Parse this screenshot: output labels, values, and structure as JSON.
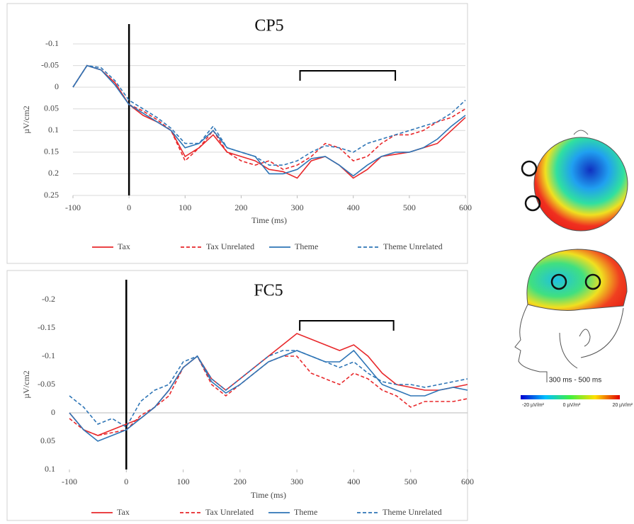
{
  "chart_data": [
    {
      "type": "line",
      "title": "CP5",
      "x_label": "Time (ms)",
      "y_label": "µV/cm2",
      "y_inverted": true,
      "grid": true,
      "legend": "bottom",
      "xlim": [
        -100,
        600
      ],
      "xticks": [
        -100,
        0,
        100,
        200,
        300,
        400,
        500,
        600
      ],
      "ylim": [
        -0.1,
        0.25
      ],
      "yticks": [
        -0.1,
        -0.05,
        0,
        0.05,
        0.1,
        0.15,
        0.2,
        0.25
      ],
      "onset": 0,
      "bracket": [
        305,
        475
      ],
      "x": [
        -100,
        -75,
        -50,
        -25,
        0,
        25,
        50,
        75,
        100,
        125,
        150,
        175,
        200,
        225,
        250,
        275,
        300,
        325,
        350,
        375,
        400,
        425,
        450,
        475,
        500,
        525,
        550,
        575,
        600
      ],
      "series": [
        {
          "name": "Tax",
          "color": "#e8282b",
          "dashed": false,
          "values": [
            0.0,
            -0.05,
            -0.04,
            -0.01,
            0.04,
            0.065,
            0.08,
            0.1,
            0.16,
            0.14,
            0.11,
            0.15,
            0.16,
            0.17,
            0.19,
            0.195,
            0.21,
            0.17,
            0.16,
            0.18,
            0.21,
            0.19,
            0.16,
            0.155,
            0.15,
            0.14,
            0.13,
            0.1,
            0.07
          ]
        },
        {
          "name": "Tax Unrelated",
          "color": "#e8282b",
          "dashed": true,
          "values": [
            0.0,
            -0.05,
            -0.04,
            -0.01,
            0.04,
            0.055,
            0.075,
            0.1,
            0.17,
            0.14,
            0.1,
            0.15,
            0.17,
            0.18,
            0.17,
            0.19,
            0.18,
            0.16,
            0.13,
            0.14,
            0.17,
            0.16,
            0.13,
            0.11,
            0.11,
            0.1,
            0.08,
            0.07,
            0.05
          ]
        },
        {
          "name": "Theme",
          "color": "#2e75b6",
          "dashed": false,
          "values": [
            0.0,
            -0.05,
            -0.04,
            -0.005,
            0.04,
            0.06,
            0.08,
            0.1,
            0.14,
            0.13,
            0.1,
            0.14,
            0.15,
            0.16,
            0.2,
            0.2,
            0.19,
            0.165,
            0.16,
            0.18,
            0.205,
            0.18,
            0.16,
            0.15,
            0.15,
            0.14,
            0.12,
            0.09,
            0.065
          ]
        },
        {
          "name": "Theme Unrelated",
          "color": "#2e75b6",
          "dashed": true,
          "values": [
            0.0,
            -0.05,
            -0.045,
            -0.015,
            0.03,
            0.05,
            0.07,
            0.095,
            0.13,
            0.13,
            0.09,
            0.14,
            0.15,
            0.16,
            0.18,
            0.18,
            0.17,
            0.15,
            0.135,
            0.14,
            0.15,
            0.13,
            0.12,
            0.11,
            0.1,
            0.09,
            0.08,
            0.06,
            0.03
          ]
        }
      ]
    },
    {
      "type": "line",
      "title": "FC5",
      "x_label": "Time (ms)",
      "y_label": "µV/cm2",
      "y_inverted": true,
      "grid": false,
      "legend": "bottom",
      "xlim": [
        -100,
        600
      ],
      "xticks": [
        -100,
        0,
        100,
        200,
        300,
        400,
        500,
        600
      ],
      "ylim": [
        -0.2,
        0.1
      ],
      "yticks": [
        -0.2,
        -0.15,
        -0.1,
        -0.05,
        0,
        0.05,
        0.1
      ],
      "onset": 0,
      "bracket": [
        305,
        470
      ],
      "x": [
        -100,
        -75,
        -50,
        -25,
        0,
        25,
        50,
        75,
        100,
        125,
        150,
        175,
        200,
        225,
        250,
        275,
        300,
        325,
        350,
        375,
        400,
        425,
        450,
        475,
        500,
        525,
        550,
        575,
        600
      ],
      "series": [
        {
          "name": "Tax",
          "color": "#e8282b",
          "dashed": false,
          "values": [
            0.0,
            0.03,
            0.04,
            0.03,
            0.02,
            0.01,
            -0.01,
            -0.04,
            -0.08,
            -0.1,
            -0.06,
            -0.04,
            -0.06,
            -0.08,
            -0.1,
            -0.12,
            -0.14,
            -0.13,
            -0.12,
            -0.11,
            -0.12,
            -0.1,
            -0.07,
            -0.05,
            -0.045,
            -0.04,
            -0.04,
            -0.045,
            -0.05
          ]
        },
        {
          "name": "Tax Unrelated",
          "color": "#e8282b",
          "dashed": true,
          "values": [
            0.01,
            0.03,
            0.04,
            0.035,
            0.03,
            0.005,
            -0.01,
            -0.03,
            -0.08,
            -0.1,
            -0.05,
            -0.03,
            -0.05,
            -0.07,
            -0.09,
            -0.1,
            -0.1,
            -0.07,
            -0.06,
            -0.05,
            -0.07,
            -0.06,
            -0.04,
            -0.03,
            -0.01,
            -0.02,
            -0.02,
            -0.02,
            -0.025
          ]
        },
        {
          "name": "Theme",
          "color": "#2e75b6",
          "dashed": false,
          "values": [
            0.0,
            0.03,
            0.05,
            0.04,
            0.03,
            0.01,
            -0.01,
            -0.04,
            -0.08,
            -0.1,
            -0.055,
            -0.035,
            -0.05,
            -0.07,
            -0.09,
            -0.1,
            -0.11,
            -0.1,
            -0.09,
            -0.09,
            -0.11,
            -0.08,
            -0.05,
            -0.04,
            -0.03,
            -0.03,
            -0.04,
            -0.045,
            -0.04
          ]
        },
        {
          "name": "Theme Unrelated",
          "color": "#2e75b6",
          "dashed": true,
          "values": [
            -0.03,
            -0.01,
            0.02,
            0.01,
            0.025,
            -0.02,
            -0.04,
            -0.05,
            -0.09,
            -0.1,
            -0.06,
            -0.04,
            -0.06,
            -0.08,
            -0.1,
            -0.11,
            -0.11,
            -0.1,
            -0.09,
            -0.08,
            -0.09,
            -0.07,
            -0.055,
            -0.05,
            -0.05,
            -0.045,
            -0.05,
            -0.055,
            -0.06
          ]
        }
      ]
    }
  ],
  "topography": {
    "time_window": "300 ms - 500 ms",
    "scale_labels": [
      "-20 µV/m²",
      "0 µV/m²",
      "20 µV/m²"
    ]
  }
}
